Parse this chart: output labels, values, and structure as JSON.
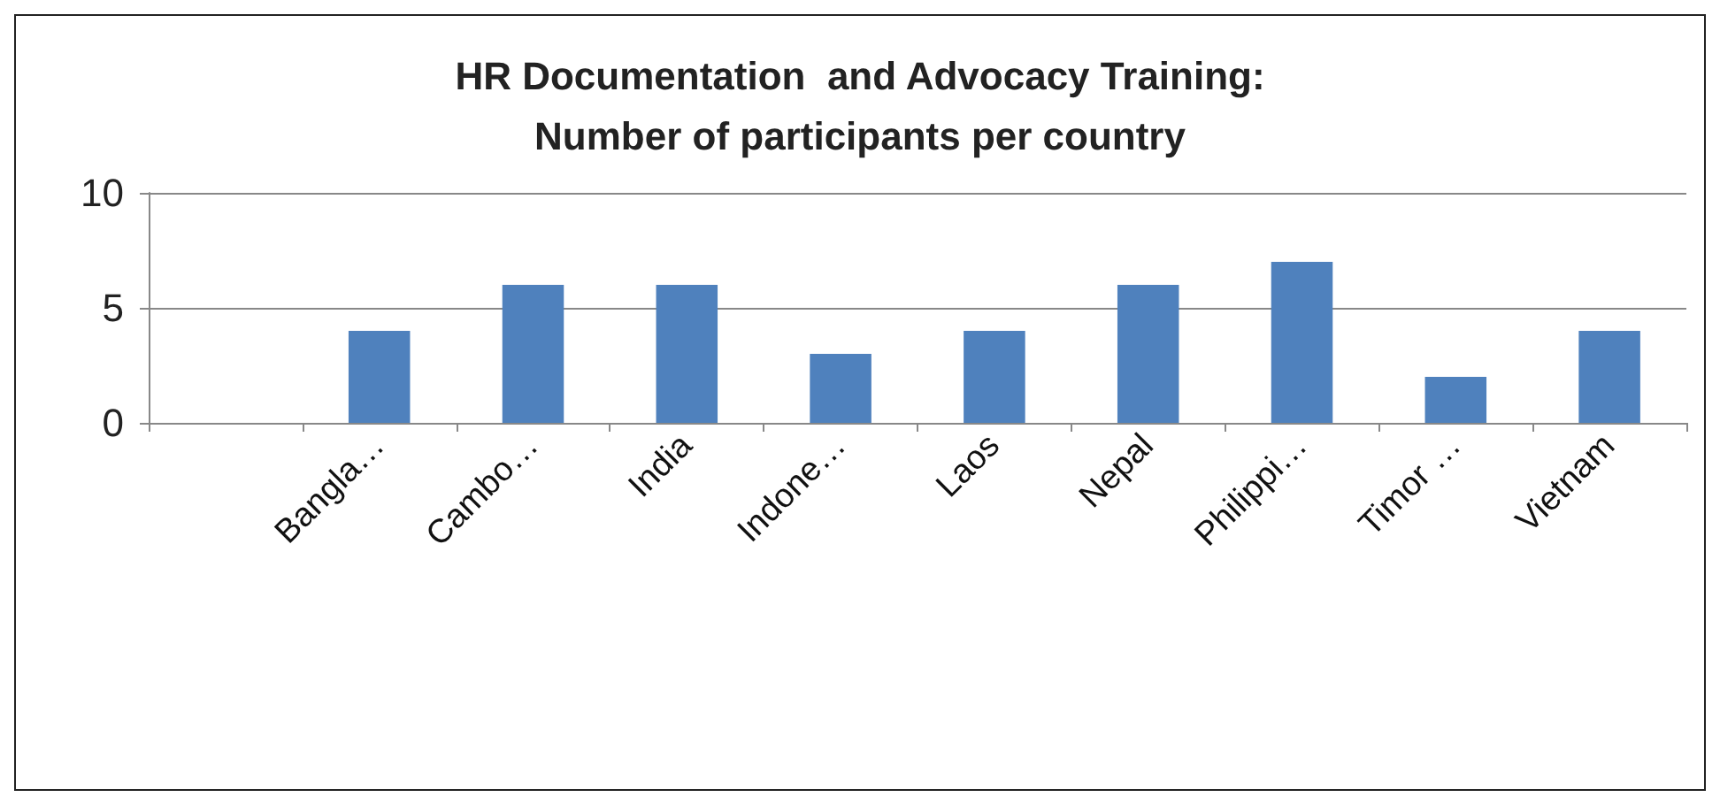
{
  "chart_data": {
    "type": "bar",
    "title": "HR Documentation  and Advocacy Training:\nNumber of participants per country",
    "categories": [
      null,
      "Bangla…",
      "Cambo…",
      "India",
      "Indone…",
      "Laos",
      "Nepal",
      "Philippi…",
      "Timor …",
      "Vietnam"
    ],
    "values": [
      null,
      4,
      6,
      6,
      3,
      4,
      6,
      7,
      2,
      4
    ],
    "color": "#4f81bd",
    "ylim": [
      0,
      10
    ],
    "yticks": [
      0,
      5,
      10
    ],
    "grid": "y"
  }
}
